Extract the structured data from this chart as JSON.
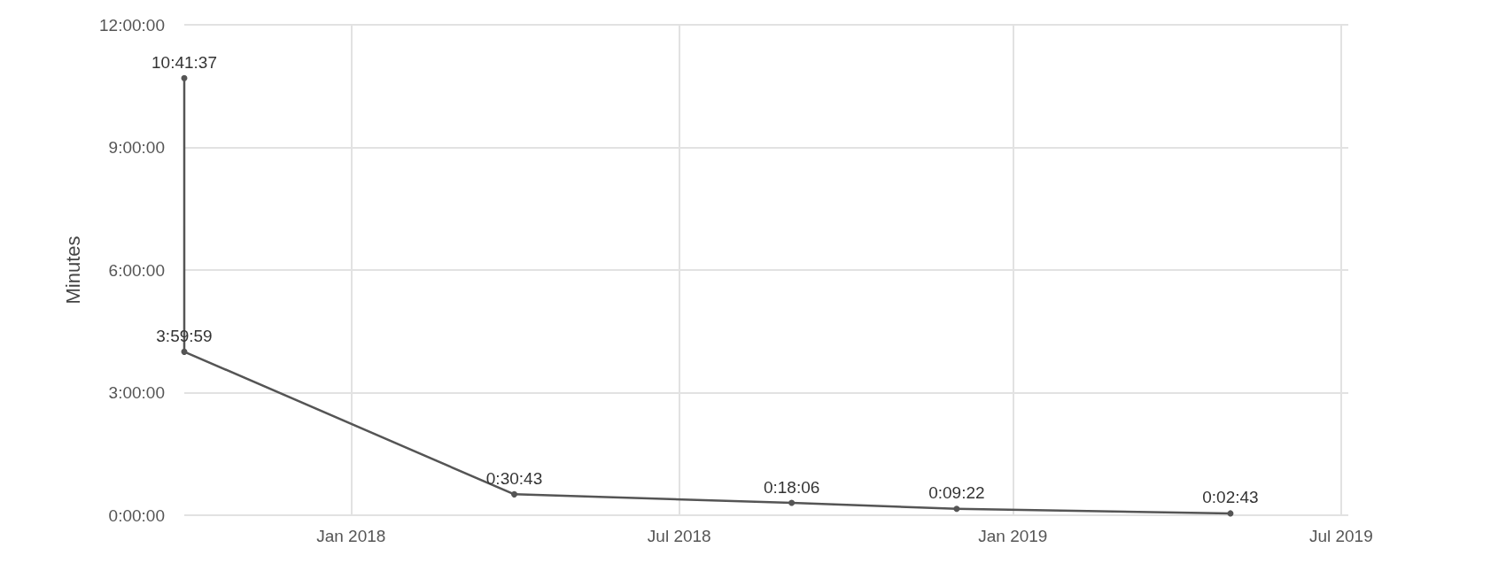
{
  "chart_data": {
    "type": "line",
    "ylabel": "Minutes",
    "x": [
      "2017-10-01",
      "2017-10-01",
      "2018-04-01",
      "2018-09-01",
      "2018-12-01",
      "2019-05-01"
    ],
    "values": [
      10.69361,
      3.99972,
      0.51194,
      0.30167,
      0.15611,
      0.04528
    ],
    "value_labels": [
      "10:41:37",
      "3:59:59",
      "0:30:43",
      "0:18:06",
      "0:09:22",
      "0:02:43"
    ],
    "color": "#555555",
    "marker": "circle",
    "grid": true,
    "xlim": [
      "2017-10-01",
      "2019-07-05"
    ],
    "xticks": [
      {
        "value": "2018-01-01",
        "label": "Jan 2018"
      },
      {
        "value": "2018-07-01",
        "label": "Jul 2018"
      },
      {
        "value": "2019-01-01",
        "label": "Jan 2019"
      },
      {
        "value": "2019-07-01",
        "label": "Jul 2019"
      }
    ],
    "ylim": [
      0,
      12
    ],
    "yticks": [
      {
        "value": 0,
        "label": "0:00:00"
      },
      {
        "value": 3,
        "label": "3:00:00"
      },
      {
        "value": 6,
        "label": "6:00:00"
      },
      {
        "value": 9,
        "label": "9:00:00"
      },
      {
        "value": 12,
        "label": "12:00:00"
      }
    ]
  }
}
